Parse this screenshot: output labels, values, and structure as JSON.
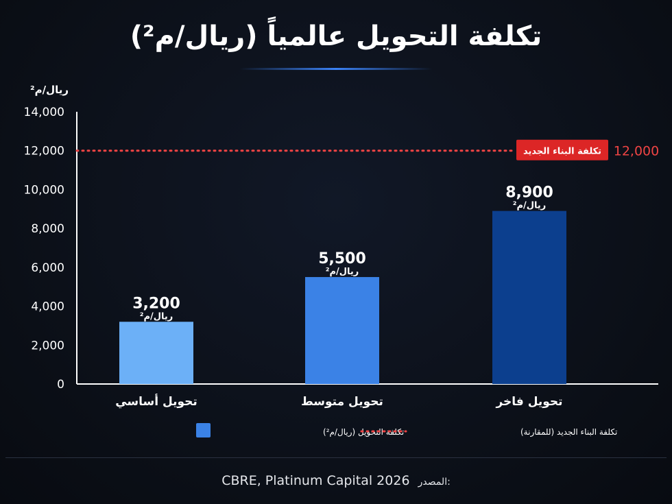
{
  "title": "تكلفة التحويل عالمياً (ريال/م²)",
  "source_label": "المصدر:",
  "source_text": "CBRE, Platinum Capital 2026",
  "colors": {
    "axis": "#ffffff",
    "reference_line": "#ef4444",
    "reference_badge": "#dc2626",
    "bars": [
      "#6cb0f7",
      "#3b82e6",
      "#0c3f8e"
    ],
    "legend_swatch": "#3b82e6"
  },
  "chart_data": {
    "type": "bar",
    "ylabel": "ريال/م²",
    "ylim": [
      0,
      14000
    ],
    "yticks": [
      0,
      2000,
      4000,
      6000,
      8000,
      10000,
      12000,
      14000
    ],
    "ytick_labels": [
      "0",
      "2,000",
      "4,000",
      "6,000",
      "8,000",
      "10,000",
      "12,000",
      "14,000"
    ],
    "categories": [
      "تحويل أساسي",
      "تحويل متوسط",
      "تحويل فاخر"
    ],
    "values": [
      3200,
      5500,
      8900
    ],
    "value_labels": [
      "3,200",
      "5,500",
      "8,900"
    ],
    "value_unit": "ريال/م²",
    "reference_line": {
      "value": 12000,
      "label": "تكلفة البناء الجديد",
      "value_label": "12,000"
    },
    "legend": [
      {
        "type": "swatch",
        "label": "تكلفة التحويل (ريال/م²)"
      },
      {
        "type": "dotted-line",
        "label": "تكلفة البناء الجديد (للمقارنة)"
      }
    ],
    "grid": false,
    "legend_position": "bottom"
  }
}
